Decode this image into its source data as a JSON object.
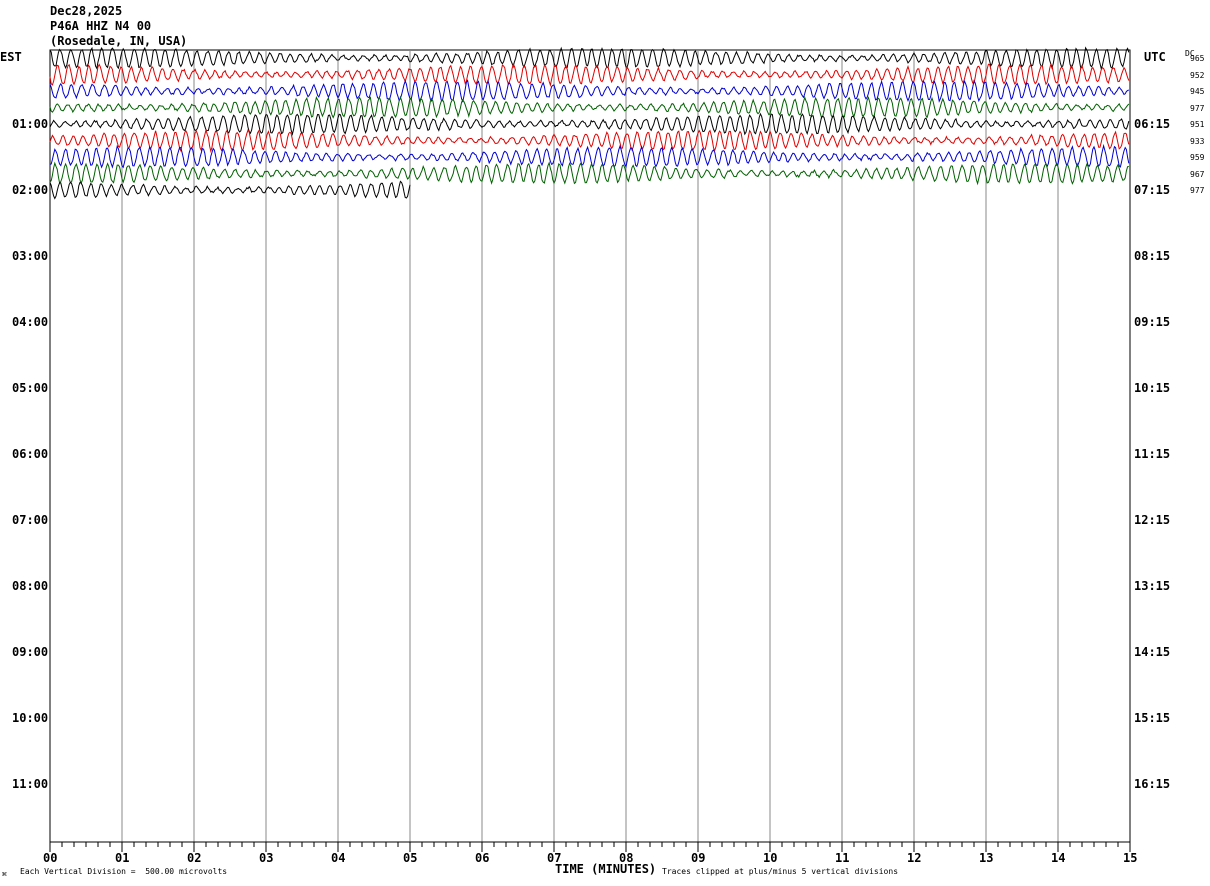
{
  "header": {
    "date": "Dec28,2025",
    "station": "P46A HHZ N4 00",
    "location": "(Rosedale, IN, USA)"
  },
  "left_zone": "EST",
  "right_zone": "UTC",
  "dc_label": "DC",
  "footer": {
    "division_note": "Each Vertical Division =  500.00 microvolts",
    "xlabel": "TIME (MINUTES)",
    "clip_note": "Traces clipped at plus/minus 5 vertical divisions",
    "corner_mark": "⌘"
  },
  "colors": {
    "black": "#000000",
    "red": "#e00000",
    "blue": "#0000d0",
    "green": "#006000",
    "grid": "#888888"
  },
  "chart_data": {
    "type": "line",
    "title": "P46A HHZ N4 00",
    "xlabel": "TIME (MINUTES)",
    "xlim": [
      0,
      15
    ],
    "x_ticks": [
      "00",
      "01",
      "02",
      "03",
      "04",
      "05",
      "06",
      "07",
      "08",
      "09",
      "10",
      "11",
      "12",
      "13",
      "14",
      "15"
    ],
    "left_hour_labels": [
      "01:00",
      "02:00",
      "03:00",
      "04:00",
      "05:00",
      "06:00",
      "07:00",
      "08:00",
      "09:00",
      "10:00",
      "11:00"
    ],
    "right_hour_labels": [
      "06:15",
      "07:15",
      "08:15",
      "09:15",
      "10:15",
      "11:15",
      "12:15",
      "13:15",
      "14:15",
      "15:15",
      "16:15"
    ],
    "minutes_per_line": 15,
    "vertical_division_microvolts": 500.0,
    "clip_divisions": 5,
    "traces": [
      {
        "color": "black",
        "dc": "965",
        "duration_min": 15
      },
      {
        "color": "red",
        "dc": "952",
        "duration_min": 15
      },
      {
        "color": "blue",
        "dc": "945",
        "duration_min": 15
      },
      {
        "color": "green",
        "dc": "977",
        "duration_min": 15
      },
      {
        "color": "black",
        "dc": "951",
        "duration_min": 15
      },
      {
        "color": "red",
        "dc": "933",
        "duration_min": 15
      },
      {
        "color": "blue",
        "dc": "959",
        "duration_min": 15
      },
      {
        "color": "green",
        "dc": "967",
        "duration_min": 15
      },
      {
        "color": "black",
        "dc": "977",
        "duration_min": 5
      }
    ]
  }
}
